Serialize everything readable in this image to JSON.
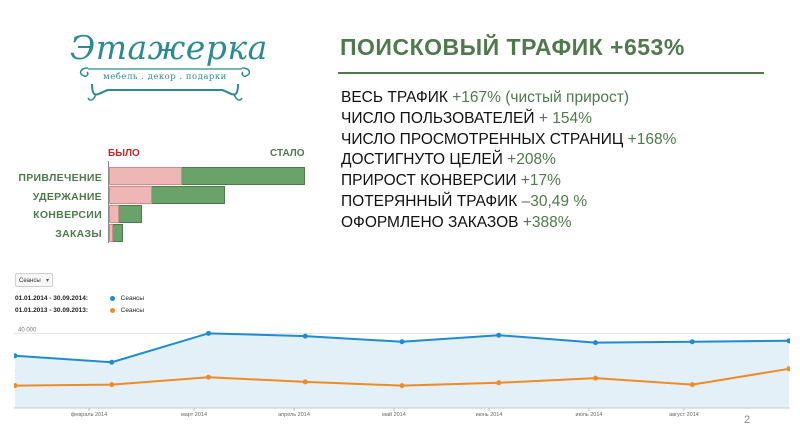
{
  "logo": {
    "brand": "Этажерка",
    "tagline": "мебель . декор . подарки"
  },
  "title": "ПОИСКОВЫЙ ТРАФИК +653%",
  "metrics": [
    {
      "label": "ВЕСЬ ТРАФИК ",
      "value": "+167% (чистый прирост)"
    },
    {
      "label": "ЧИСЛО ПОЛЬЗОВАТЕЛЕЙ ",
      "value": "+ 154%"
    },
    {
      "label": "ЧИСЛО ПРОСМОТРЕННЫХ СТРАНИЦ ",
      "value": "+168%"
    },
    {
      "label": "ДОСТИГНУТО ЦЕЛЕЙ ",
      "value": "+208%"
    },
    {
      "label": "ПРИРОСТ КОНВЕРСИИ ",
      "value": "+17%"
    },
    {
      "label": "ПОТЕРЯННЫЙ ТРАФИК ",
      "value": "–30,49 %"
    },
    {
      "label": "ОФОРМЛЕНО ЗАКАЗОВ ",
      "value": "+388%"
    }
  ],
  "bar_chart": {
    "before_label": "БЫЛО",
    "after_label": "СТАЛО",
    "before_color": "#efb6b6",
    "after_color": "#6aa36a",
    "before_text_color": "#c0292b",
    "after_text_color": "#4f7a4c",
    "rows": [
      {
        "label": "ПРИВЛЕЧЕНИЕ",
        "before": 37,
        "after": 100
      },
      {
        "label": "УДЕРЖАНИЕ",
        "before": 22,
        "after": 59
      },
      {
        "label": "КОНВЕРСИИ",
        "before": 5,
        "after": 17
      },
      {
        "label": "ЗАКАЗЫ",
        "before": 2,
        "after": 7
      }
    ]
  },
  "analytics": {
    "metric_select": "Сеансы",
    "legend": [
      {
        "range": "01.01.2014 - 30.09.2014:",
        "series": "Сеансы",
        "color": "#1f8bd1"
      },
      {
        "range": "01.01.2013 - 30.09.2013:",
        "series": "Сеансы",
        "color": "#f08a24"
      }
    ]
  },
  "chart_data": {
    "type": "line",
    "x_tick_labels": [
      "февраль 2014",
      "март 2014",
      "апрель 2014",
      "май 2014",
      "июнь 2014",
      "июль 2014",
      "август 2014"
    ],
    "y_tick_labels": [
      "40 000",
      "20 000"
    ],
    "ylim": [
      0,
      45000
    ],
    "series": [
      {
        "name": "Сеансы",
        "color": "#1f8bd1",
        "values": [
          28000,
          24500,
          40000,
          38500,
          35500,
          39000,
          35000,
          35500,
          36000
        ]
      },
      {
        "name": "Сеансы",
        "color": "#f08a24",
        "values": [
          12000,
          12500,
          16500,
          14000,
          12000,
          13500,
          16000,
          12500,
          21000
        ]
      }
    ]
  },
  "page_number": "2"
}
